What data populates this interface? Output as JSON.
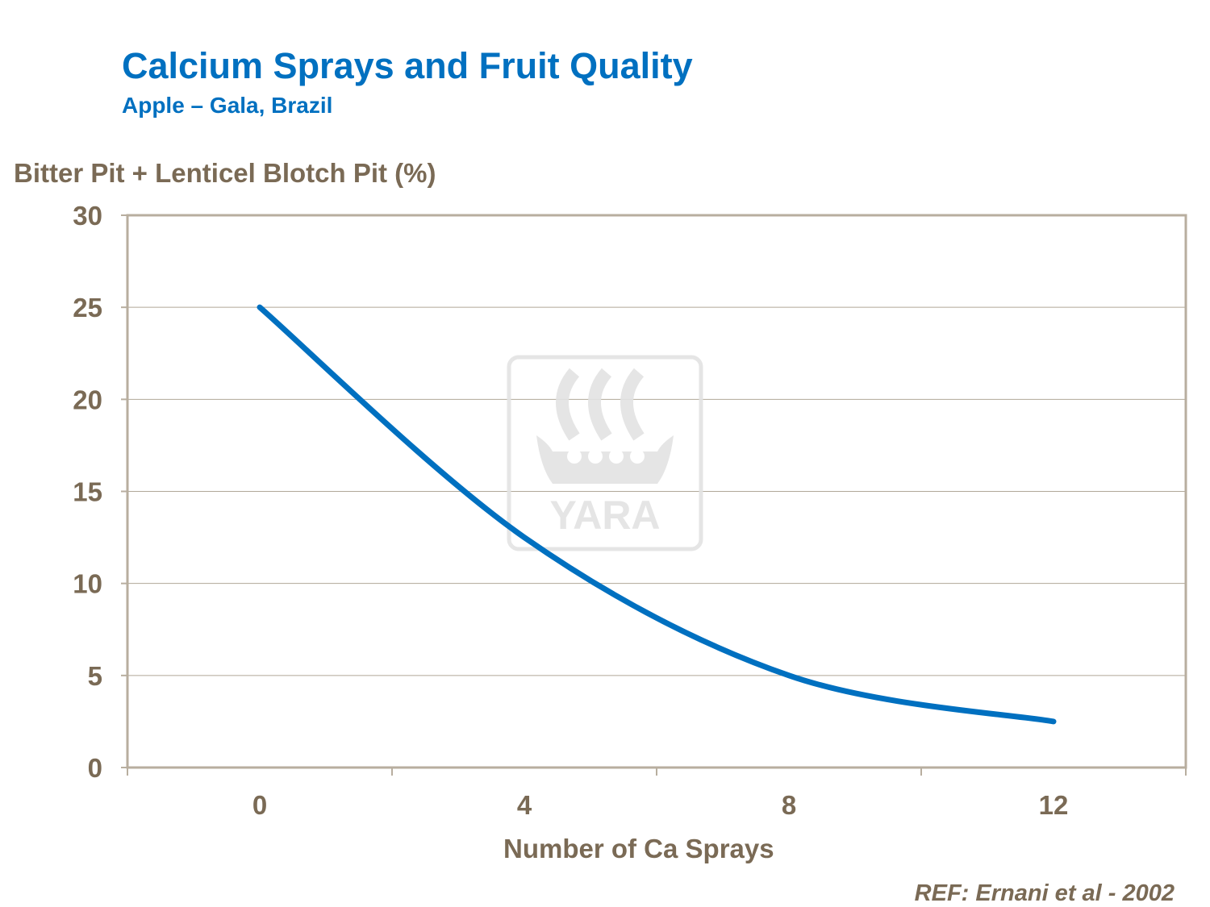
{
  "chart_data": {
    "type": "line",
    "title": "Calcium Sprays and Fruit Quality",
    "subtitle": "Apple – Gala, Brazil",
    "ylabel": "Bitter Pit + Lenticel Blotch Pit (%)",
    "xlabel": "Number of Ca Sprays",
    "categories": [
      "0",
      "4",
      "8",
      "12"
    ],
    "values": [
      25,
      12.5,
      5,
      2.5
    ],
    "ylim": [
      0,
      30
    ],
    "yticks": [
      0,
      5,
      10,
      15,
      20,
      25,
      30
    ],
    "grid": true,
    "smoothed": true,
    "colors": {
      "line": "#0070C0",
      "text": "#7A6A55",
      "title": "#0070C0",
      "grid": "#B0A898",
      "frame": "#B8AE9F"
    },
    "watermark": "YARA",
    "reference": "REF: Ernani et al - 2002"
  }
}
